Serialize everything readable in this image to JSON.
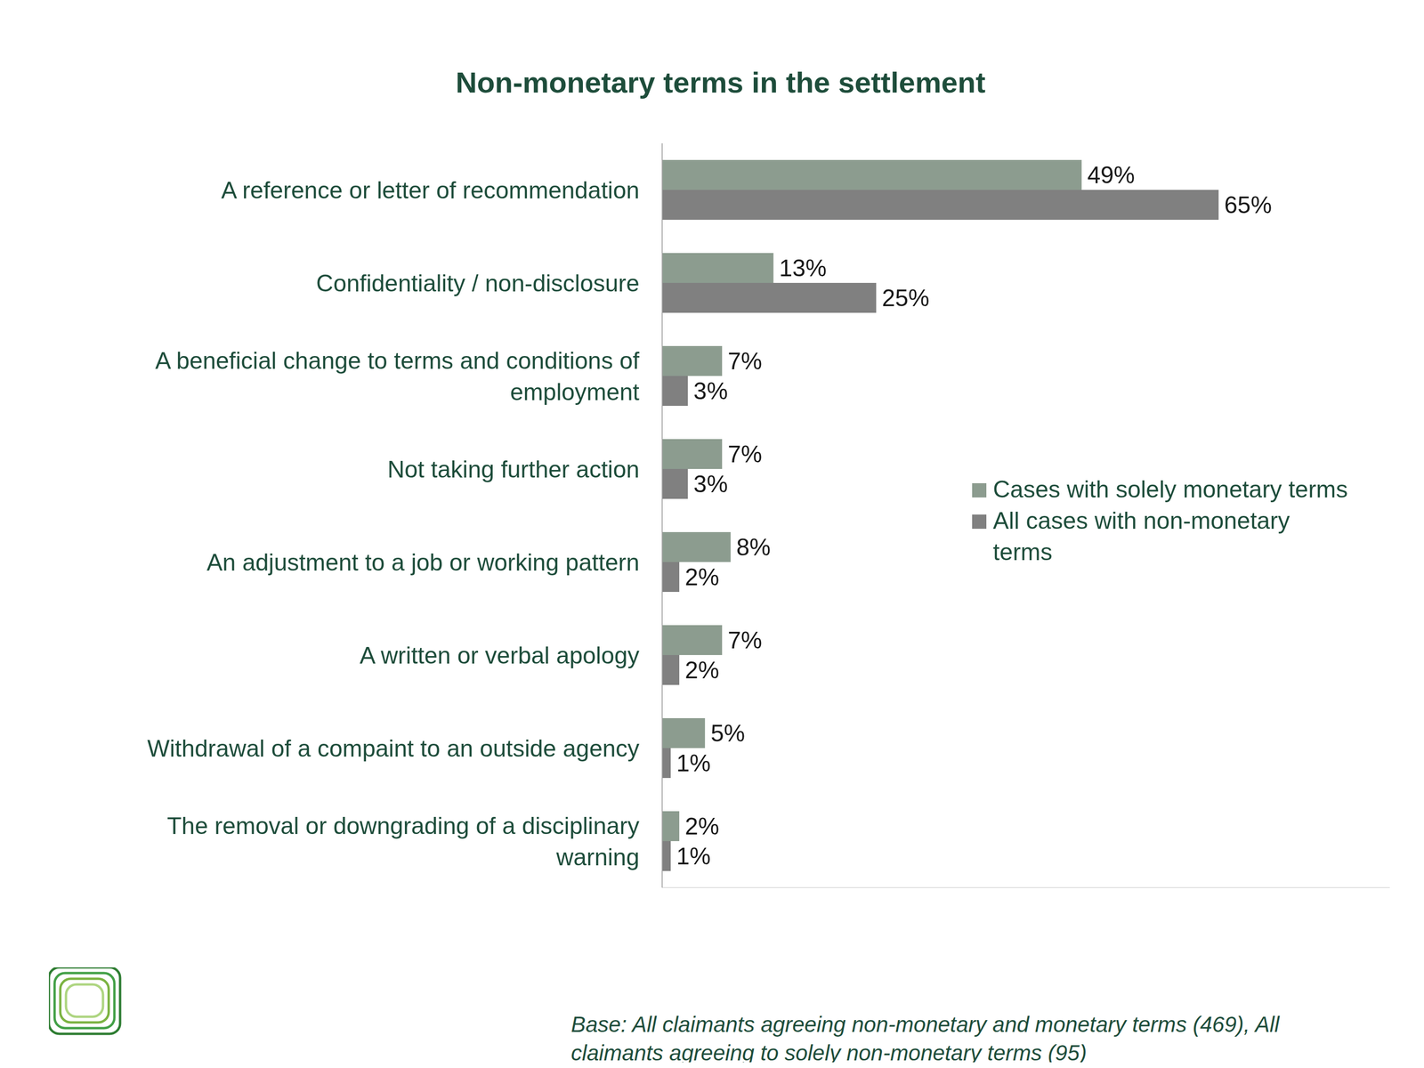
{
  "chart_data": {
    "type": "bar",
    "title": "Non-monetary terms in the settlement",
    "orientation": "horizontal",
    "categories": [
      "A reference or letter of recommendation",
      "Confidentiality / non-disclosure",
      "A beneficial change to terms and conditions of employment",
      "Not taking further action",
      "An adjustment to a job or working pattern",
      "A written or verbal apology",
      "Withdrawal of a compaint to an outside agency",
      "The removal or downgrading of a disciplinary warning"
    ],
    "series": [
      {
        "name": "Cases with solely monetary terms",
        "color": "#8c9c8f",
        "values": [
          49,
          13,
          7,
          7,
          8,
          7,
          5,
          2
        ],
        "value_labels": [
          "49%",
          "13%",
          "7%",
          "7%",
          "8%",
          "7%",
          "5%",
          "2%"
        ]
      },
      {
        "name": "All cases with non-monetary terms",
        "color": "#808080",
        "values": [
          65,
          25,
          3,
          3,
          2,
          2,
          1,
          1
        ],
        "value_labels": [
          "65%",
          "25%",
          "3%",
          "3%",
          "2%",
          "2%",
          "1%",
          "1%"
        ]
      }
    ],
    "xlim": [
      0,
      85
    ],
    "tick_labels": "y",
    "data_labels": true,
    "grid": false,
    "legend": "right",
    "annotations": [
      "Base: All claimants agreeing non-monetary and monetary terms (469), All claimants agreeing to solely non-monetary terms (95)"
    ]
  }
}
